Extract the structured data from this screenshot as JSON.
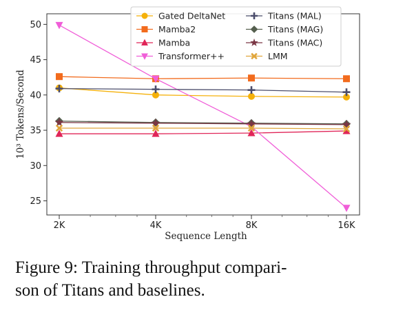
{
  "chart_data": {
    "type": "line",
    "xlabel": "Sequence Length",
    "ylabel": "10³ Tokens/Second",
    "categories": [
      "2K",
      "4K",
      "8K",
      "16K"
    ],
    "ylim": [
      23,
      51.5
    ],
    "yticks": [
      25,
      30,
      35,
      40,
      45,
      50
    ],
    "grid": false,
    "legend_position": "top-right",
    "series": [
      {
        "name": "Gated DeltaNet",
        "values": [
          41.0,
          40.0,
          39.8,
          39.7
        ],
        "color": "#f5b10a",
        "marker": "circle"
      },
      {
        "name": "Mamba2",
        "values": [
          42.6,
          42.3,
          42.4,
          42.3
        ],
        "color": "#f26b1d",
        "marker": "square"
      },
      {
        "name": "Mamba",
        "values": [
          34.5,
          34.5,
          34.6,
          34.9
        ],
        "color": "#e02558",
        "marker": "triangle-up"
      },
      {
        "name": "Transformer++",
        "values": [
          49.9,
          42.3,
          35.5,
          24.0
        ],
        "color": "#f05ed8",
        "marker": "triangle-down"
      },
      {
        "name": "Titans (MAL)",
        "values": [
          40.9,
          40.8,
          40.7,
          40.4
        ],
        "color": "#4b4d6b",
        "marker": "plus"
      },
      {
        "name": "Titans (MAG)",
        "values": [
          36.3,
          36.1,
          36.0,
          35.9
        ],
        "color": "#555f4e",
        "marker": "diamond"
      },
      {
        "name": "Titans (MAC)",
        "values": [
          36.1,
          36.0,
          35.9,
          35.8
        ],
        "color": "#7a3644",
        "marker": "star"
      },
      {
        "name": "LMM",
        "values": [
          35.3,
          35.3,
          35.3,
          35.2
        ],
        "color": "#e0a53a",
        "marker": "x"
      }
    ]
  },
  "caption": "Figure 9: Training throughput comparison of Titans and baselines.",
  "caption_lines": [
    "Figure 9: Training throughput compari-",
    "son of Titans and baselines."
  ]
}
